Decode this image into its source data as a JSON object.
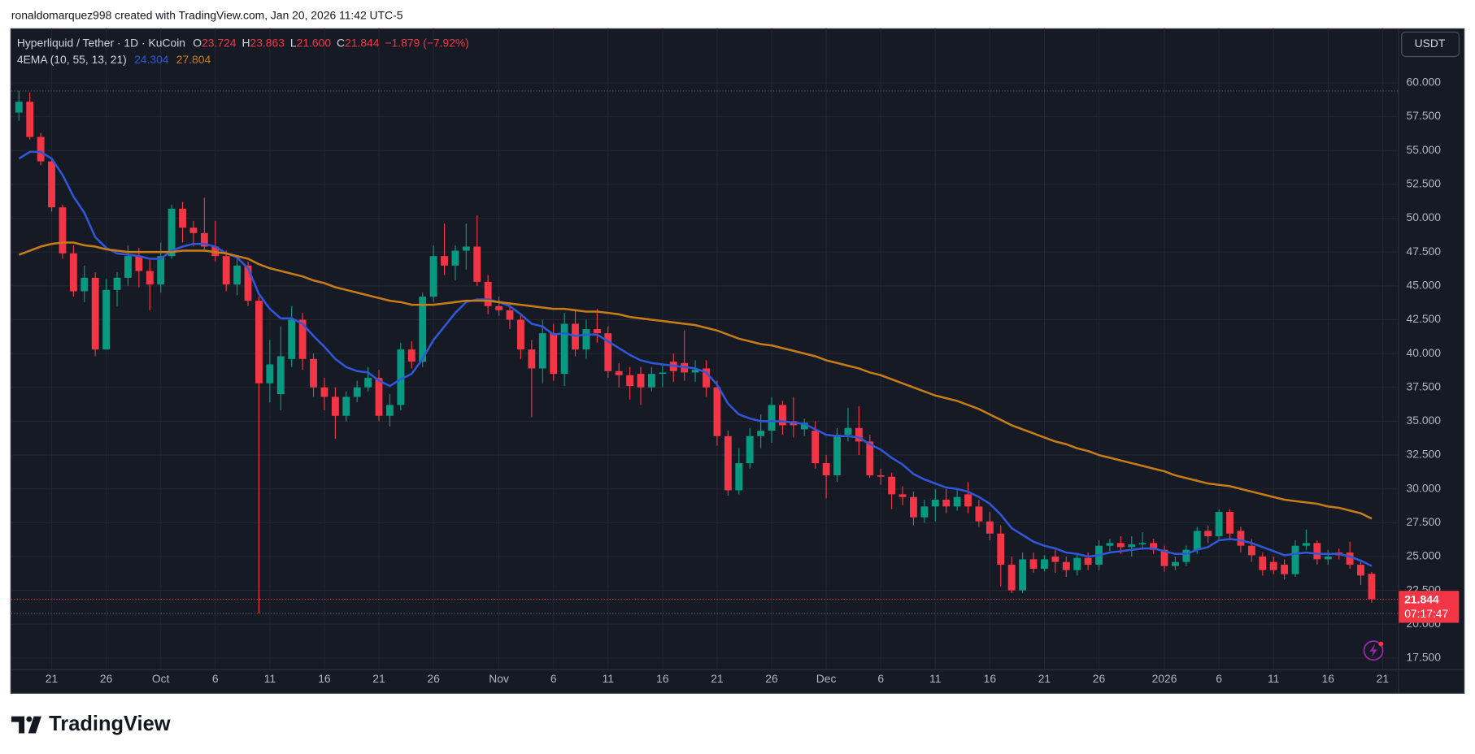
{
  "chart_data": {
    "type": "candlestick",
    "header": "ronaldomarquez998 created with TradingView.com, Jan 20, 2026 11:42 UTC-5",
    "symbol": "Hyperliquid / Tether · 1D · KuCoin",
    "ohlc_legend": [
      [
        "O",
        "23.724"
      ],
      [
        "H",
        "23.863"
      ],
      [
        "L",
        "21.600"
      ],
      [
        "C",
        "21.844"
      ]
    ],
    "change": "−1.879 (−7.92%)",
    "indicator": "4EMA (10, 55, 13, 21)",
    "currency": "USDT",
    "countdown": "07:17:47",
    "logo": "TradingView",
    "up_color": "#089981",
    "down_color": "#f23645",
    "grid": true,
    "open": [
      57.8,
      58.6,
      56.0,
      54.2,
      50.8,
      47.4,
      44.6,
      45.6,
      40.3,
      44.7,
      45.6,
      47.2,
      46.1,
      45.1,
      47.2,
      50.7,
      49.3,
      48.9,
      47.9,
      47.2,
      45.1,
      46.5,
      43.9,
      37.8,
      37.0,
      39.6,
      42.5,
      39.6,
      37.5,
      36.8,
      35.4,
      36.8,
      37.5,
      38.2,
      35.4,
      36.2,
      40.3,
      39.4,
      44.2,
      47.2,
      46.5,
      47.6,
      47.9,
      45.3,
      43.5,
      43.2,
      42.5,
      40.3,
      38.9,
      41.5,
      38.5,
      42.2,
      40.3,
      41.8,
      41.5,
      38.7,
      38.4,
      38.5,
      37.5,
      38.5,
      39.4,
      39.3,
      38.6,
      38.9,
      37.5,
      33.9,
      29.9,
      31.9,
      33.9,
      34.3,
      36.2,
      35.0,
      34.4,
      34.3,
      31.9,
      31.0,
      34.0,
      34.5,
      33.5,
      31.0,
      30.9,
      29.6,
      29.4,
      27.9,
      28.7,
      29.2,
      28.7,
      29.6,
      28.7,
      27.6,
      26.7,
      24.4,
      22.5,
      24.8,
      24.1,
      25.0,
      24.6,
      24.0,
      24.9,
      24.4,
      25.8,
      26.0,
      25.7,
      25.9,
      26.0,
      25.5,
      24.3,
      24.6,
      25.5,
      26.9,
      26.5,
      28.3,
      26.9,
      25.8,
      25.0,
      24.6,
      24.4,
      23.7,
      25.8,
      26.0,
      24.8,
      25.3,
      25.3,
      24.4,
      23.724
    ],
    "high": [
      59.4,
      59.3,
      56.3,
      54.3,
      51.0,
      48.0,
      46.5,
      46.0,
      45.5,
      46.0,
      48.0,
      47.8,
      46.9,
      48.2,
      51.0,
      51.2,
      49.8,
      51.5,
      49.8,
      47.6,
      47.0,
      46.8,
      44.2,
      41.0,
      42.0,
      43.5,
      43.0,
      40.0,
      38.2,
      37.5,
      37.2,
      38.0,
      39.0,
      38.8,
      37.0,
      40.8,
      40.9,
      44.5,
      48.0,
      49.6,
      48.0,
      49.6,
      50.2,
      45.8,
      44.2,
      43.8,
      42.8,
      41.0,
      42.5,
      42.2,
      43.0,
      43.2,
      42.5,
      43.3,
      42.0,
      39.3,
      39.0,
      39.0,
      39.0,
      39.2,
      40.0,
      41.7,
      39.5,
      39.5,
      38.0,
      34.3,
      33.0,
      34.5,
      35.5,
      36.8,
      36.5,
      36.8,
      35.2,
      35.0,
      32.5,
      34.5,
      36.0,
      36.1,
      34.0,
      31.5,
      31.2,
      30.2,
      29.8,
      29.2,
      30.0,
      30.0,
      30.0,
      30.5,
      29.2,
      28.3,
      27.3,
      25.0,
      25.3,
      25.3,
      25.1,
      25.5,
      25.0,
      25.2,
      25.3,
      26.2,
      26.3,
      26.5,
      26.5,
      26.8,
      26.3,
      25.8,
      25.0,
      25.8,
      27.2,
      27.3,
      28.5,
      28.5,
      27.2,
      26.3,
      25.3,
      25.0,
      24.8,
      26.2,
      27.0,
      26.2,
      25.5,
      25.6,
      26.1,
      24.7,
      23.863
    ],
    "low": [
      57.2,
      55.8,
      53.9,
      50.5,
      47.0,
      44.2,
      43.8,
      39.8,
      40.3,
      43.5,
      45.0,
      44.9,
      43.2,
      44.5,
      47.0,
      48.2,
      47.9,
      47.5,
      46.8,
      44.6,
      44.3,
      43.5,
      20.8,
      36.4,
      35.8,
      39.0,
      38.8,
      36.8,
      35.8,
      33.7,
      35.0,
      36.4,
      37.2,
      35.0,
      34.6,
      35.8,
      38.9,
      39.0,
      43.8,
      45.8,
      45.4,
      46.2,
      45.0,
      42.9,
      42.8,
      41.8,
      39.6,
      35.3,
      37.8,
      38.0,
      37.6,
      39.8,
      39.6,
      40.8,
      38.2,
      37.5,
      36.6,
      36.2,
      37.2,
      37.5,
      37.9,
      38.0,
      37.9,
      36.8,
      33.2,
      29.5,
      29.6,
      31.5,
      33.0,
      33.4,
      34.0,
      33.8,
      33.9,
      31.5,
      29.3,
      30.5,
      33.5,
      32.5,
      30.8,
      30.3,
      28.5,
      28.8,
      27.3,
      27.5,
      27.6,
      28.2,
      28.4,
      28.2,
      27.2,
      26.2,
      22.8,
      22.3,
      22.3,
      23.8,
      23.9,
      23.8,
      23.5,
      23.6,
      24.0,
      24.0,
      25.4,
      25.2,
      25.0,
      25.5,
      25.2,
      23.9,
      24.0,
      24.3,
      25.2,
      26.0,
      26.3,
      26.2,
      25.3,
      24.6,
      23.6,
      23.7,
      23.3,
      23.5,
      25.5,
      24.4,
      24.4,
      24.8,
      24.1,
      22.9,
      21.6
    ],
    "close": [
      58.6,
      56.0,
      54.2,
      50.8,
      47.4,
      44.6,
      45.6,
      40.3,
      44.7,
      45.6,
      47.2,
      46.1,
      45.1,
      47.2,
      50.7,
      49.3,
      48.9,
      47.9,
      47.2,
      45.1,
      46.5,
      43.9,
      37.8,
      39.2,
      39.8,
      42.5,
      39.6,
      37.5,
      36.8,
      35.4,
      36.8,
      37.5,
      38.2,
      35.4,
      36.2,
      40.3,
      39.4,
      44.2,
      47.2,
      46.5,
      47.6,
      47.9,
      45.3,
      43.5,
      43.2,
      42.5,
      40.3,
      38.9,
      41.5,
      38.5,
      42.2,
      40.3,
      41.8,
      41.5,
      38.7,
      38.4,
      37.6,
      37.5,
      38.5,
      38.6,
      38.7,
      38.6,
      38.8,
      37.5,
      33.9,
      29.9,
      31.9,
      33.9,
      34.3,
      36.2,
      34.7,
      34.7,
      34.9,
      31.9,
      31.0,
      34.0,
      34.5,
      33.5,
      31.0,
      30.9,
      29.6,
      29.4,
      27.9,
      28.7,
      29.2,
      28.7,
      29.4,
      28.7,
      27.6,
      26.7,
      24.4,
      22.5,
      24.8,
      24.1,
      24.8,
      24.6,
      24.0,
      24.9,
      24.4,
      25.8,
      26.0,
      25.7,
      25.9,
      26.0,
      25.5,
      24.3,
      24.6,
      25.5,
      26.9,
      26.5,
      28.3,
      26.7,
      25.8,
      25.1,
      24.0,
      24.0,
      23.7,
      25.8,
      26.0,
      24.8,
      25.0,
      25.1,
      24.4,
      23.6,
      21.844
    ],
    "lines": [
      {
        "color": "#2f57d8",
        "value_label": "24.304",
        "values": [
          54.4,
          54.9,
          54.9,
          54.4,
          53.2,
          51.6,
          50.4,
          48.6,
          47.8,
          47.4,
          47.3,
          47.2,
          47.0,
          47.0,
          47.6,
          47.9,
          48.1,
          48.1,
          47.9,
          47.4,
          47.1,
          46.3,
          44.4,
          43.3,
          42.6,
          42.6,
          42.2,
          41.3,
          40.5,
          39.6,
          39.0,
          38.7,
          38.6,
          38.0,
          37.6,
          38.1,
          38.5,
          39.6,
          41.0,
          42.0,
          43.0,
          43.8,
          44.0,
          44.0,
          43.8,
          43.5,
          42.9,
          42.2,
          42.0,
          41.4,
          41.5,
          41.3,
          41.4,
          41.4,
          40.9,
          40.4,
          39.9,
          39.5,
          39.3,
          39.2,
          39.1,
          39.0,
          38.9,
          38.6,
          37.7,
          36.3,
          35.5,
          35.2,
          35.0,
          35.0,
          35.0,
          34.9,
          34.8,
          34.4,
          34.0,
          33.9,
          33.9,
          33.8,
          33.3,
          32.9,
          32.3,
          31.8,
          31.1,
          30.7,
          30.4,
          30.1,
          30.0,
          29.8,
          29.4,
          28.9,
          28.1,
          27.1,
          26.6,
          26.1,
          25.8,
          25.6,
          25.3,
          25.2,
          25.0,
          25.1,
          25.3,
          25.4,
          25.5,
          25.6,
          25.6,
          25.4,
          25.2,
          25.2,
          25.5,
          25.7,
          26.2,
          26.3,
          26.2,
          26.0,
          25.7,
          25.4,
          25.1,
          25.2,
          25.3,
          25.2,
          25.2,
          25.2,
          25.0,
          24.7,
          24.304
        ]
      },
      {
        "color": "#c77c16",
        "value_label": "27.804",
        "values": [
          47.3,
          47.6,
          47.9,
          48.1,
          48.2,
          48.2,
          48.0,
          47.9,
          47.7,
          47.6,
          47.5,
          47.5,
          47.5,
          47.5,
          47.5,
          47.6,
          47.6,
          47.6,
          47.5,
          47.4,
          47.2,
          47.0,
          46.6,
          46.3,
          46.1,
          45.9,
          45.7,
          45.4,
          45.2,
          44.9,
          44.7,
          44.5,
          44.3,
          44.1,
          43.9,
          43.8,
          43.6,
          43.6,
          43.6,
          43.7,
          43.8,
          43.9,
          43.9,
          43.9,
          43.8,
          43.7,
          43.6,
          43.5,
          43.4,
          43.3,
          43.3,
          43.2,
          43.1,
          43.1,
          43.0,
          42.9,
          42.7,
          42.6,
          42.5,
          42.4,
          42.3,
          42.2,
          42.1,
          41.9,
          41.7,
          41.4,
          41.1,
          40.9,
          40.7,
          40.6,
          40.4,
          40.2,
          40.0,
          39.8,
          39.5,
          39.3,
          39.1,
          38.9,
          38.6,
          38.4,
          38.1,
          37.8,
          37.5,
          37.2,
          36.9,
          36.7,
          36.5,
          36.2,
          35.9,
          35.5,
          35.1,
          34.7,
          34.4,
          34.1,
          33.8,
          33.5,
          33.3,
          33.0,
          32.8,
          32.5,
          32.3,
          32.1,
          31.9,
          31.7,
          31.5,
          31.3,
          31.0,
          30.8,
          30.6,
          30.4,
          30.3,
          30.2,
          30.0,
          29.8,
          29.6,
          29.4,
          29.2,
          29.1,
          29.0,
          28.9,
          28.7,
          28.6,
          28.4,
          28.2,
          27.804
        ]
      }
    ],
    "xlim": [
      -0.7,
      126.4
    ],
    "xticks": [
      {
        "value": 3,
        "label": "21"
      },
      {
        "value": 8,
        "label": "26"
      },
      {
        "value": 13,
        "label": "Oct"
      },
      {
        "value": 18,
        "label": "6"
      },
      {
        "value": 23,
        "label": "11"
      },
      {
        "value": 28,
        "label": "16"
      },
      {
        "value": 33,
        "label": "21"
      },
      {
        "value": 38,
        "label": "26"
      },
      {
        "value": 44,
        "label": "Nov"
      },
      {
        "value": 49,
        "label": "6"
      },
      {
        "value": 54,
        "label": "11"
      },
      {
        "value": 59,
        "label": "16"
      },
      {
        "value": 64,
        "label": "21"
      },
      {
        "value": 69,
        "label": "26"
      },
      {
        "value": 74,
        "label": "Dec"
      },
      {
        "value": 79,
        "label": "6"
      },
      {
        "value": 84,
        "label": "11"
      },
      {
        "value": 89,
        "label": "16"
      },
      {
        "value": 94,
        "label": "21"
      },
      {
        "value": 99,
        "label": "26"
      },
      {
        "value": 105,
        "label": "2026"
      },
      {
        "value": 110,
        "label": "6"
      },
      {
        "value": 115,
        "label": "11"
      },
      {
        "value": 120,
        "label": "16"
      },
      {
        "value": 125,
        "label": "21"
      }
    ],
    "ylim": [
      16.67,
      64.03
    ],
    "yticks": [
      {
        "value": 17.5,
        "label": "17.500"
      },
      {
        "value": 20,
        "label": "20.000"
      },
      {
        "value": 22.5,
        "label": "22.500"
      },
      {
        "value": 25,
        "label": "25.000"
      },
      {
        "value": 27.5,
        "label": "27.500"
      },
      {
        "value": 30,
        "label": "30.000"
      },
      {
        "value": 32.5,
        "label": "32.500"
      },
      {
        "value": 35,
        "label": "35.000"
      },
      {
        "value": 37.5,
        "label": "37.500"
      },
      {
        "value": 40,
        "label": "40.000"
      },
      {
        "value": 42.5,
        "label": "42.500"
      },
      {
        "value": 45,
        "label": "45.000"
      },
      {
        "value": 47.5,
        "label": "47.500"
      },
      {
        "value": 50,
        "label": "50.000"
      },
      {
        "value": 52.5,
        "label": "52.500"
      },
      {
        "value": 55,
        "label": "55.000"
      },
      {
        "value": 57.5,
        "label": "57.500"
      },
      {
        "value": 60,
        "label": "60.000"
      }
    ]
  }
}
